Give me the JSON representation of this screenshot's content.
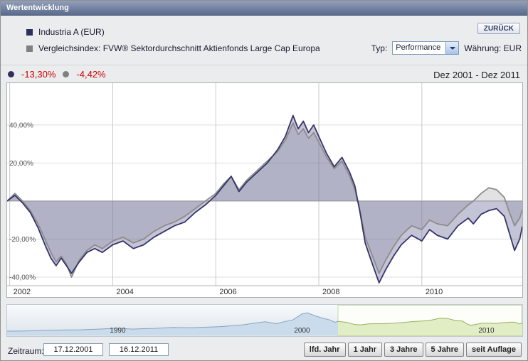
{
  "header": {
    "title": "Wertentwicklung"
  },
  "legend": {
    "series1": {
      "label": "Industria A (EUR)",
      "color": "#2f2f5e"
    },
    "series2": {
      "label": "Vergleichsindex: FVW® Sektordurchschnitt Aktienfonds Large Cap Europa",
      "color": "#808080"
    },
    "back_button": "ZURÜCK",
    "typ_label": "Typ:",
    "typ_value": "Performance",
    "currency_label": "Währung: EUR"
  },
  "summary": {
    "series1_value": "-13,30%",
    "series2_value": "-4,42%",
    "value_color": "#cc0000",
    "range_label": "Dez 2001 - Dez 2011"
  },
  "chart_data": [
    {
      "type": "line",
      "title": "Performance Dez 2001 - Dez 2011",
      "xlim": [
        2001.95,
        2011.95
      ],
      "ylim": [
        -44.5,
        62
      ],
      "grid": true,
      "yticks": [
        {
          "v": 40,
          "label": "40,00%"
        },
        {
          "v": 20,
          "label": "20,00%"
        },
        {
          "v": -20,
          "label": "-20,00%"
        },
        {
          "v": -40,
          "label": "-40,00%"
        }
      ],
      "xticks": [
        {
          "v": 2002,
          "label": "2002"
        },
        {
          "v": 2004,
          "label": "2004"
        },
        {
          "v": 2006,
          "label": "2006"
        },
        {
          "v": 2008,
          "label": "2008"
        },
        {
          "v": 2010,
          "label": "2010"
        }
      ],
      "x": [
        2001.95,
        2002.1,
        2002.25,
        2002.4,
        2002.55,
        2002.7,
        2002.8,
        2002.9,
        2003.0,
        2003.1,
        2003.2,
        2003.35,
        2003.5,
        2003.65,
        2003.8,
        2004.0,
        2004.2,
        2004.4,
        2004.6,
        2004.8,
        2005.0,
        2005.2,
        2005.4,
        2005.6,
        2005.8,
        2006.0,
        2006.15,
        2006.3,
        2006.45,
        2006.6,
        2006.8,
        2007.0,
        2007.2,
        2007.35,
        2007.5,
        2007.6,
        2007.7,
        2007.8,
        2007.9,
        2008.0,
        2008.15,
        2008.3,
        2008.45,
        2008.6,
        2008.7,
        2008.8,
        2008.9,
        2009.0,
        2009.17,
        2009.3,
        2009.45,
        2009.6,
        2009.8,
        2010.0,
        2010.15,
        2010.3,
        2010.5,
        2010.7,
        2010.9,
        2011.0,
        2011.15,
        2011.3,
        2011.45,
        2011.6,
        2011.7,
        2011.8,
        2011.9,
        2011.95
      ],
      "series": [
        {
          "name": "Industria A (EUR)",
          "color": "#35356b",
          "fill": "rgba(100,100,150,0.38)",
          "values": [
            0,
            3,
            -1,
            -6,
            -14,
            -24,
            -30,
            -34,
            -30,
            -34,
            -38,
            -32,
            -27,
            -25,
            -27,
            -23,
            -21,
            -25,
            -23,
            -19,
            -16,
            -13,
            -11,
            -6,
            -2,
            3,
            8,
            13,
            5,
            10,
            15,
            20,
            27,
            34,
            45,
            38,
            42,
            36,
            40,
            34,
            25,
            18,
            23,
            15,
            8,
            -6,
            -22,
            -30,
            -43,
            -36,
            -29,
            -23,
            -18,
            -21,
            -15,
            -18,
            -20,
            -13,
            -9,
            -12,
            -7,
            -5,
            -4,
            -8,
            -17,
            -26,
            -20,
            -13.3
          ]
        },
        {
          "name": "Vergleichsindex: FVW® Sektordurchschnitt Aktienfonds Large Cap Europa",
          "color": "#8c8c8c",
          "fill": "rgba(150,150,158,0.28)",
          "values": [
            0,
            4,
            0,
            -5,
            -12,
            -21,
            -27,
            -32,
            -29,
            -33,
            -40,
            -31,
            -26,
            -23,
            -25,
            -21,
            -19,
            -22,
            -20,
            -16,
            -13,
            -11,
            -8,
            -4,
            0,
            4,
            9,
            13,
            6,
            11,
            16,
            21,
            26,
            32,
            41,
            35,
            38,
            33,
            36,
            31,
            23,
            17,
            21,
            13,
            6,
            -5,
            -19,
            -26,
            -38,
            -31,
            -24,
            -18,
            -13,
            -15,
            -10,
            -12,
            -13,
            -7,
            -2,
            0,
            4,
            7,
            6,
            2,
            -6,
            -13,
            -9,
            -4.42
          ]
        }
      ]
    },
    {
      "type": "area",
      "title": "Zeitraum-Navigator",
      "xlim": [
        1984.0,
        2011.95
      ],
      "selected_range": [
        2001.95,
        2011.95
      ],
      "xticks": [
        {
          "v": 1990,
          "label": "1990"
        },
        {
          "v": 2000,
          "label": "2000"
        },
        {
          "v": 2010,
          "label": "2010"
        }
      ],
      "colors": {
        "history_fill": "#cadbeb",
        "history_line": "#85a3c4",
        "selected_fill": "#e0edc5",
        "selected_line": "#97b25c"
      },
      "history": {
        "x": [
          1984,
          1985,
          1986,
          1987,
          1988,
          1989,
          1990,
          1990.8,
          1991.5,
          1992,
          1993,
          1994,
          1994.8,
          1995.5,
          1996,
          1996.8,
          1997.4,
          1998,
          1998.6,
          1999,
          1999.5,
          2000,
          2000.3,
          2000.7,
          2001.1,
          2001.5,
          2001.8,
          2001.95
        ],
        "values": [
          12,
          13,
          15,
          17,
          18,
          21,
          25,
          21,
          23,
          24,
          28,
          27,
          29,
          31,
          34,
          39,
          46,
          52,
          44,
          52,
          60,
          86,
          90,
          78,
          68,
          60,
          50,
          54
        ]
      },
      "selected": {
        "x": [
          2001.95,
          2002.4,
          2002.9,
          2003.2,
          2003.6,
          2004.0,
          2004.5,
          2005.0,
          2005.5,
          2006.0,
          2006.5,
          2007.0,
          2007.5,
          2007.9,
          2008.3,
          2008.7,
          2008.95,
          2009.17,
          2009.5,
          2009.8,
          2010.1,
          2010.5,
          2010.8,
          2011.1,
          2011.4,
          2011.6,
          2011.8,
          2011.95
        ],
        "values": [
          54,
          50,
          40,
          39,
          43,
          44,
          44,
          46,
          49,
          53,
          55,
          59,
          68,
          66,
          58,
          55,
          43,
          37,
          42,
          46,
          46,
          45,
          48,
          49,
          51,
          49,
          43,
          47
        ]
      }
    }
  ],
  "footer": {
    "zeitraum_label": "Zeitraum:",
    "date_from": "17.12.2001",
    "date_to": "16.12.2011",
    "buttons": [
      "lfd. Jahr",
      "1 Jahr",
      "3 Jahre",
      "5 Jahre",
      "seit Auflage"
    ]
  }
}
